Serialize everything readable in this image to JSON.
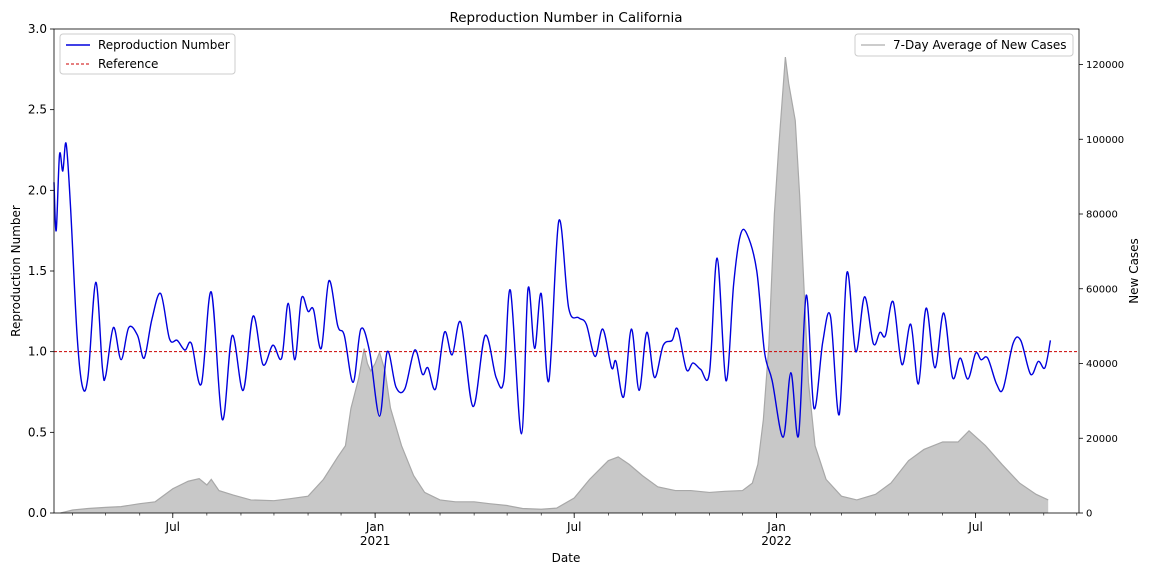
{
  "chart_data": {
    "type": "line",
    "title": "Reproduction Number in California",
    "xlabel": "Date",
    "ylabel": "Reproduction Number",
    "y2label": "New Cases",
    "xlim": [
      "2020-03-15",
      "2022-10-03"
    ],
    "ylim": [
      0,
      3.0
    ],
    "y2lim": [
      0,
      129500
    ],
    "grid": false,
    "x_ticks": [
      {
        "date": "2020-07-01",
        "label": "Jul",
        "sublabel": ""
      },
      {
        "date": "2021-01-01",
        "label": "Jan",
        "sublabel": "2021"
      },
      {
        "date": "2021-07-01",
        "label": "Jul",
        "sublabel": ""
      },
      {
        "date": "2022-01-01",
        "label": "Jan",
        "sublabel": "2022"
      },
      {
        "date": "2022-07-01",
        "label": "Jul",
        "sublabel": ""
      }
    ],
    "y_ticks": [
      "0.0",
      "0.5",
      "1.0",
      "1.5",
      "2.0",
      "2.5",
      "3.0"
    ],
    "y2_ticks": [
      "0",
      "20000",
      "40000",
      "60000",
      "80000",
      "100000",
      "120000"
    ],
    "legends": [
      {
        "placement": "top-left",
        "entries": [
          "Reproduction Number",
          "Reference"
        ]
      },
      {
        "placement": "top-right",
        "entries": [
          "7-Day Average of New Cases"
        ]
      }
    ],
    "colors": {
      "reproduction": "#0000dd",
      "reference": "#cc0000",
      "cases_fill": "#c8c8c8",
      "cases_line": "#a8a8a8"
    },
    "series": [
      {
        "name": "Reproduction Number",
        "axis": "left",
        "points": [
          [
            "2020-03-15",
            2.05
          ],
          [
            "2020-03-17",
            1.75
          ],
          [
            "2020-03-20",
            2.22
          ],
          [
            "2020-03-23",
            2.12
          ],
          [
            "2020-03-26",
            2.29
          ],
          [
            "2020-03-30",
            1.9
          ],
          [
            "2020-04-05",
            1.1
          ],
          [
            "2020-04-10",
            0.78
          ],
          [
            "2020-04-15",
            0.85
          ],
          [
            "2020-04-22",
            1.43
          ],
          [
            "2020-04-28",
            0.9
          ],
          [
            "2020-05-01",
            0.85
          ],
          [
            "2020-05-08",
            1.15
          ],
          [
            "2020-05-15",
            0.95
          ],
          [
            "2020-05-22",
            1.15
          ],
          [
            "2020-05-30",
            1.1
          ],
          [
            "2020-06-05",
            0.96
          ],
          [
            "2020-06-12",
            1.2
          ],
          [
            "2020-06-20",
            1.36
          ],
          [
            "2020-06-28",
            1.08
          ],
          [
            "2020-07-05",
            1.07
          ],
          [
            "2020-07-12",
            1.01
          ],
          [
            "2020-07-18",
            1.05
          ],
          [
            "2020-07-27",
            0.8
          ],
          [
            "2020-08-05",
            1.37
          ],
          [
            "2020-08-15",
            0.58
          ],
          [
            "2020-08-24",
            1.1
          ],
          [
            "2020-09-03",
            0.76
          ],
          [
            "2020-09-12",
            1.22
          ],
          [
            "2020-09-21",
            0.92
          ],
          [
            "2020-09-30",
            1.04
          ],
          [
            "2020-10-08",
            0.96
          ],
          [
            "2020-10-14",
            1.3
          ],
          [
            "2020-10-20",
            0.95
          ],
          [
            "2020-10-26",
            1.33
          ],
          [
            "2020-11-01",
            1.25
          ],
          [
            "2020-11-06",
            1.26
          ],
          [
            "2020-11-13",
            1.02
          ],
          [
            "2020-11-20",
            1.44
          ],
          [
            "2020-11-28",
            1.16
          ],
          [
            "2020-12-04",
            1.1
          ],
          [
            "2020-12-12",
            0.81
          ],
          [
            "2020-12-19",
            1.14
          ],
          [
            "2020-12-27",
            1.0
          ],
          [
            "2021-01-05",
            0.6
          ],
          [
            "2021-01-12",
            1.0
          ],
          [
            "2021-01-20",
            0.78
          ],
          [
            "2021-01-28",
            0.77
          ],
          [
            "2021-02-06",
            1.01
          ],
          [
            "2021-02-13",
            0.86
          ],
          [
            "2021-02-18",
            0.9
          ],
          [
            "2021-02-25",
            0.77
          ],
          [
            "2021-03-05",
            1.12
          ],
          [
            "2021-03-12",
            0.98
          ],
          [
            "2021-03-20",
            1.18
          ],
          [
            "2021-03-31",
            0.66
          ],
          [
            "2021-04-11",
            1.1
          ],
          [
            "2021-04-21",
            0.84
          ],
          [
            "2021-04-28",
            0.82
          ],
          [
            "2021-05-04",
            1.38
          ],
          [
            "2021-05-14",
            0.49
          ],
          [
            "2021-05-20",
            1.39
          ],
          [
            "2021-05-26",
            1.02
          ],
          [
            "2021-06-01",
            1.36
          ],
          [
            "2021-06-08",
            0.82
          ],
          [
            "2021-06-17",
            1.81
          ],
          [
            "2021-06-26",
            1.27
          ],
          [
            "2021-07-05",
            1.21
          ],
          [
            "2021-07-12",
            1.17
          ],
          [
            "2021-07-20",
            0.97
          ],
          [
            "2021-07-27",
            1.14
          ],
          [
            "2021-08-04",
            0.9
          ],
          [
            "2021-08-08",
            0.94
          ],
          [
            "2021-08-15",
            0.72
          ],
          [
            "2021-08-22",
            1.14
          ],
          [
            "2021-08-29",
            0.76
          ],
          [
            "2021-09-05",
            1.12
          ],
          [
            "2021-09-12",
            0.84
          ],
          [
            "2021-09-20",
            1.04
          ],
          [
            "2021-09-28",
            1.07
          ],
          [
            "2021-10-03",
            1.14
          ],
          [
            "2021-10-11",
            0.89
          ],
          [
            "2021-10-17",
            0.93
          ],
          [
            "2021-10-24",
            0.89
          ],
          [
            "2021-11-01",
            0.87
          ],
          [
            "2021-11-08",
            1.58
          ],
          [
            "2021-11-16",
            0.82
          ],
          [
            "2021-11-23",
            1.42
          ],
          [
            "2021-11-29",
            1.72
          ],
          [
            "2021-12-05",
            1.73
          ],
          [
            "2021-12-14",
            1.5
          ],
          [
            "2021-12-21",
            1.0
          ],
          [
            "2021-12-28",
            0.82
          ],
          [
            "2022-01-07",
            0.47
          ],
          [
            "2022-01-14",
            0.87
          ],
          [
            "2022-01-21",
            0.48
          ],
          [
            "2022-01-28",
            1.35
          ],
          [
            "2022-02-04",
            0.65
          ],
          [
            "2022-02-12",
            1.06
          ],
          [
            "2022-02-19",
            1.22
          ],
          [
            "2022-02-27",
            0.61
          ],
          [
            "2022-03-06",
            1.49
          ],
          [
            "2022-03-14",
            1.0
          ],
          [
            "2022-03-22",
            1.34
          ],
          [
            "2022-03-30",
            1.05
          ],
          [
            "2022-04-05",
            1.12
          ],
          [
            "2022-04-10",
            1.1
          ],
          [
            "2022-04-17",
            1.31
          ],
          [
            "2022-04-25",
            0.92
          ],
          [
            "2022-05-03",
            1.17
          ],
          [
            "2022-05-10",
            0.8
          ],
          [
            "2022-05-17",
            1.27
          ],
          [
            "2022-05-25",
            0.9
          ],
          [
            "2022-06-02",
            1.24
          ],
          [
            "2022-06-10",
            0.84
          ],
          [
            "2022-06-17",
            0.96
          ],
          [
            "2022-06-24",
            0.83
          ],
          [
            "2022-07-01",
            0.99
          ],
          [
            "2022-07-06",
            0.95
          ],
          [
            "2022-07-12",
            0.96
          ],
          [
            "2022-07-20",
            0.8
          ],
          [
            "2022-07-26",
            0.77
          ],
          [
            "2022-08-04",
            1.05
          ],
          [
            "2022-08-11",
            1.07
          ],
          [
            "2022-08-20",
            0.86
          ],
          [
            "2022-08-27",
            0.94
          ],
          [
            "2022-09-02",
            0.9
          ],
          [
            "2022-09-07",
            1.07
          ]
        ]
      },
      {
        "name": "Reference",
        "axis": "left",
        "value": 1.0
      },
      {
        "name": "7-Day Average of New Cases",
        "axis": "right",
        "points": [
          [
            "2020-03-21",
            0
          ],
          [
            "2020-04-01",
            800
          ],
          [
            "2020-04-15",
            1200
          ],
          [
            "2020-05-01",
            1500
          ],
          [
            "2020-05-15",
            1700
          ],
          [
            "2020-06-01",
            2500
          ],
          [
            "2020-06-15",
            3000
          ],
          [
            "2020-07-01",
            6500
          ],
          [
            "2020-07-15",
            8500
          ],
          [
            "2020-07-25",
            9200
          ],
          [
            "2020-08-01",
            7500
          ],
          [
            "2020-08-05",
            9000
          ],
          [
            "2020-08-12",
            6000
          ],
          [
            "2020-08-25",
            4800
          ],
          [
            "2020-09-10",
            3500
          ],
          [
            "2020-10-01",
            3300
          ],
          [
            "2020-10-15",
            3800
          ],
          [
            "2020-11-01",
            4500
          ],
          [
            "2020-11-15",
            9000
          ],
          [
            "2020-11-28",
            15000
          ],
          [
            "2020-12-05",
            18000
          ],
          [
            "2020-12-10",
            28000
          ],
          [
            "2020-12-17",
            36000
          ],
          [
            "2020-12-22",
            44000
          ],
          [
            "2020-12-25",
            40000
          ],
          [
            "2020-12-28",
            38000
          ],
          [
            "2021-01-01",
            40000
          ],
          [
            "2021-01-05",
            43000
          ],
          [
            "2021-01-10",
            38000
          ],
          [
            "2021-01-15",
            28000
          ],
          [
            "2021-01-25",
            18000
          ],
          [
            "2021-02-05",
            10000
          ],
          [
            "2021-02-15",
            5500
          ],
          [
            "2021-03-01",
            3500
          ],
          [
            "2021-03-15",
            3000
          ],
          [
            "2021-04-01",
            3000
          ],
          [
            "2021-04-15",
            2500
          ],
          [
            "2021-05-01",
            2000
          ],
          [
            "2021-05-15",
            1200
          ],
          [
            "2021-06-01",
            1000
          ],
          [
            "2021-06-15",
            1300
          ],
          [
            "2021-07-01",
            4000
          ],
          [
            "2021-07-15",
            9000
          ],
          [
            "2021-08-01",
            14000
          ],
          [
            "2021-08-10",
            15000
          ],
          [
            "2021-08-20",
            13000
          ],
          [
            "2021-09-01",
            10000
          ],
          [
            "2021-09-15",
            7000
          ],
          [
            "2021-10-01",
            6000
          ],
          [
            "2021-10-15",
            6000
          ],
          [
            "2021-11-01",
            5500
          ],
          [
            "2021-11-15",
            5800
          ],
          [
            "2021-12-01",
            6000
          ],
          [
            "2021-12-10",
            8000
          ],
          [
            "2021-12-15",
            13000
          ],
          [
            "2021-12-20",
            25000
          ],
          [
            "2021-12-25",
            45000
          ],
          [
            "2021-12-30",
            80000
          ],
          [
            "2022-01-03",
            98000
          ],
          [
            "2022-01-06",
            110000
          ],
          [
            "2022-01-09",
            122000
          ],
          [
            "2022-01-12",
            115000
          ],
          [
            "2022-01-15",
            110000
          ],
          [
            "2022-01-18",
            105000
          ],
          [
            "2022-01-22",
            85000
          ],
          [
            "2022-01-26",
            60000
          ],
          [
            "2022-01-30",
            35000
          ],
          [
            "2022-02-05",
            18000
          ],
          [
            "2022-02-15",
            9000
          ],
          [
            "2022-03-01",
            4500
          ],
          [
            "2022-03-15",
            3500
          ],
          [
            "2022-04-01",
            5000
          ],
          [
            "2022-04-15",
            8000
          ],
          [
            "2022-05-01",
            14000
          ],
          [
            "2022-05-15",
            17000
          ],
          [
            "2022-06-01",
            19000
          ],
          [
            "2022-06-15",
            19000
          ],
          [
            "2022-06-25",
            22000
          ],
          [
            "2022-07-10",
            18000
          ],
          [
            "2022-07-25",
            13000
          ],
          [
            "2022-08-10",
            8000
          ],
          [
            "2022-08-25",
            5000
          ],
          [
            "2022-09-05",
            3500
          ]
        ]
      }
    ]
  }
}
